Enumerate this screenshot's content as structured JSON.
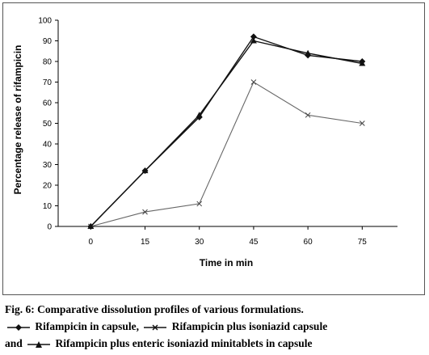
{
  "chart_data": {
    "type": "line",
    "title": "",
    "xlabel": "Time in min",
    "ylabel": "Percentage release of rifampicin",
    "categories": [
      "0",
      "15",
      "30",
      "45",
      "60",
      "75"
    ],
    "x": [
      0,
      15,
      30,
      45,
      60,
      75
    ],
    "yticks": [
      "0",
      "10",
      "20",
      "30",
      "40",
      "50",
      "60",
      "70",
      "80",
      "90",
      "100"
    ],
    "ylim": [
      0,
      100
    ],
    "grid": false,
    "series": [
      {
        "name": "Rifampicin in capsule",
        "marker": "diamond",
        "values": [
          0,
          27,
          53,
          92,
          83,
          80
        ]
      },
      {
        "name": "Rifampicin plus isoniazid capsule",
        "marker": "cross",
        "values": [
          0,
          7,
          11,
          70,
          54,
          50
        ]
      },
      {
        "name": "Rifampicin plus enteric isoniazid minitablets in capsule",
        "marker": "triangle",
        "values": [
          0,
          27,
          54,
          90,
          84,
          79
        ]
      }
    ]
  },
  "caption": {
    "line1": "Fig. 6: Comparative dissolution profiles of various formulations.",
    "line2_a": "Rifampicin in capsule,",
    "line2_b": "Rifampicin plus isoniazid capsule",
    "line3_prefix": "and",
    "line3_b": "Rifampicin plus enteric isoniazid minitablets in capsule"
  },
  "colors": {
    "line_dark": "#111111",
    "line_light": "#666666"
  }
}
